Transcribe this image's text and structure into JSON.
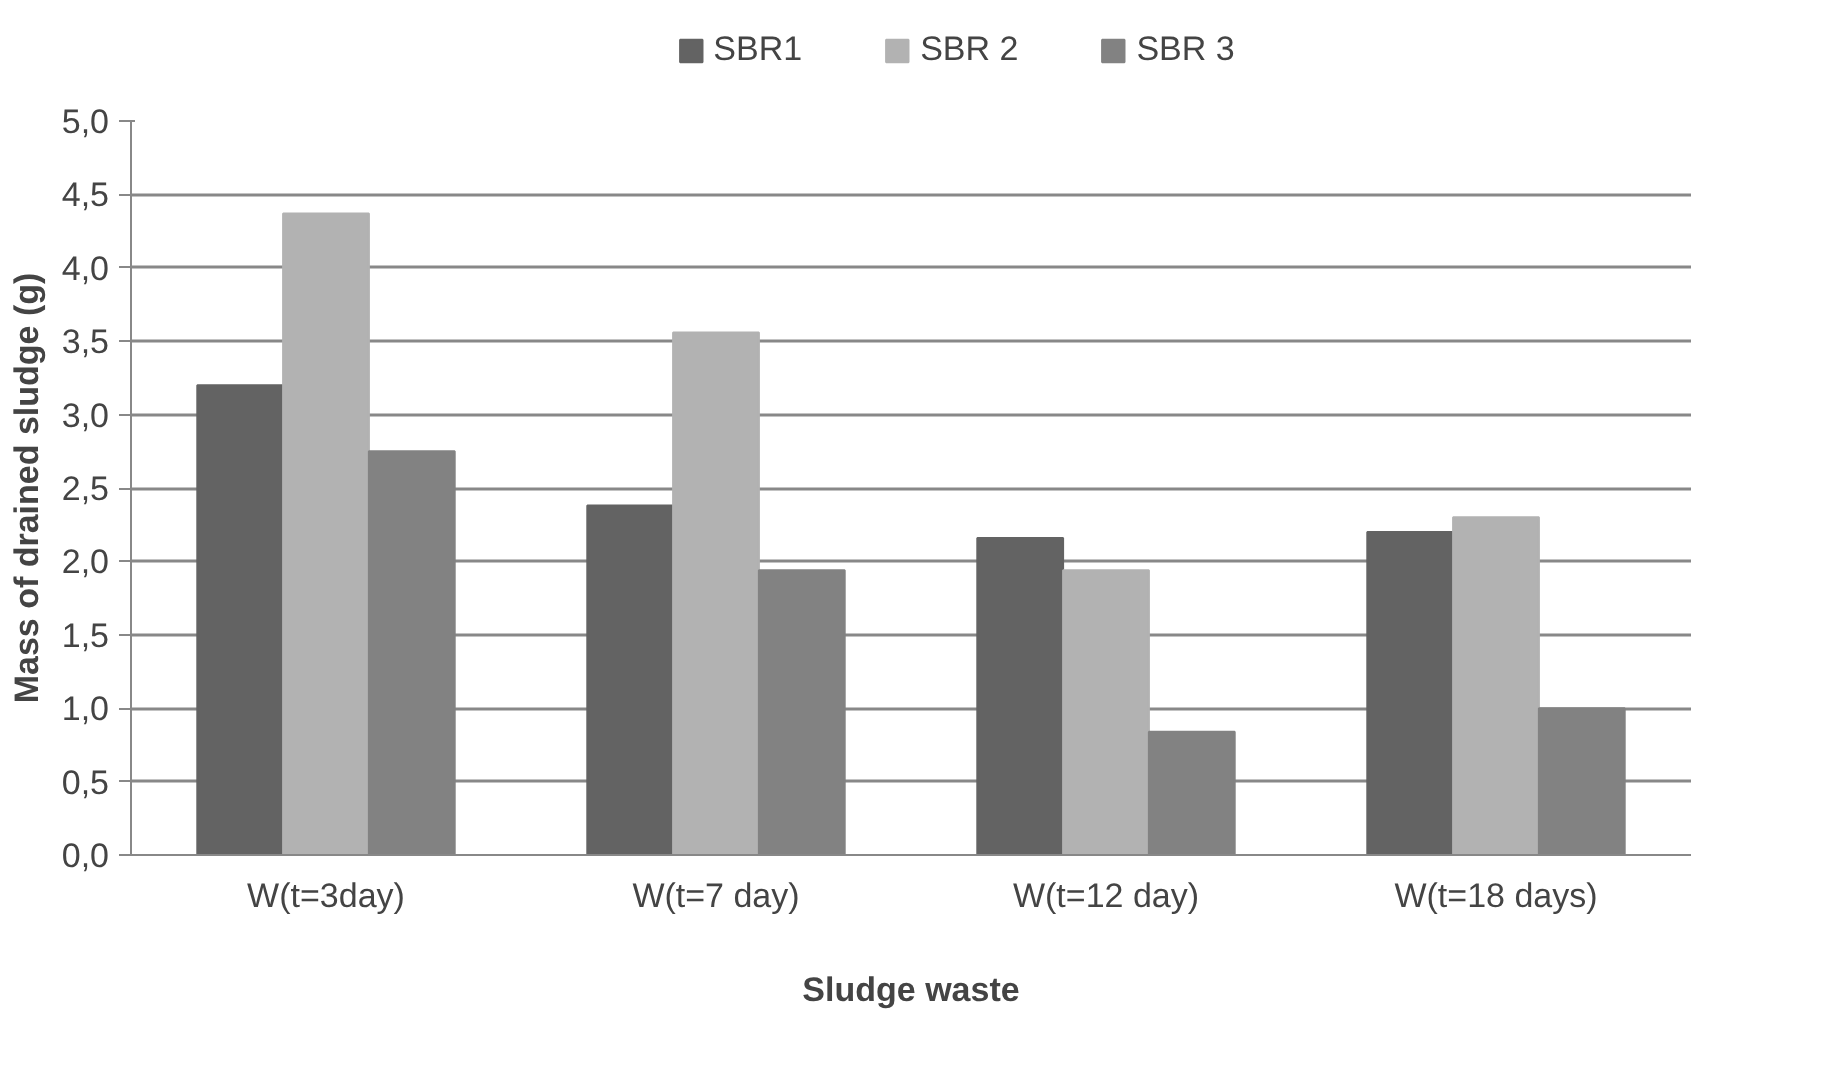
{
  "chart_data": {
    "type": "bar",
    "xlabel": "Sludge waste",
    "ylabel": "Mass of drained sludge (g)",
    "categories": [
      "W(t=3day)",
      "W(t=7 day)",
      "W(t=12 day)",
      "W(t=18 days)"
    ],
    "series": [
      {
        "name": "SBR1",
        "color": "#636363",
        "values": [
          3.2,
          2.38,
          2.16,
          2.2
        ]
      },
      {
        "name": "SBR 2",
        "color": "#b2b2b2",
        "values": [
          4.37,
          3.56,
          1.94,
          2.3
        ]
      },
      {
        "name": "SBR 3",
        "color": "#828282",
        "values": [
          2.75,
          1.94,
          0.84,
          1.0
        ]
      }
    ],
    "ylim": [
      0,
      5
    ],
    "yticks": [
      {
        "value": 0,
        "label": "0,0"
      },
      {
        "value": 0.5,
        "label": "0,5"
      },
      {
        "value": 1,
        "label": "1,0"
      },
      {
        "value": 1.5,
        "label": "1,5"
      },
      {
        "value": 2,
        "label": "2,0"
      },
      {
        "value": 2.5,
        "label": "2,5"
      },
      {
        "value": 3,
        "label": "3,0"
      },
      {
        "value": 3.5,
        "label": "3,5"
      },
      {
        "value": 4,
        "label": "4,0"
      },
      {
        "value": 4.5,
        "label": "4,5"
      },
      {
        "value": 5,
        "label": "5,0"
      }
    ],
    "grid": "y",
    "legend": "top"
  }
}
